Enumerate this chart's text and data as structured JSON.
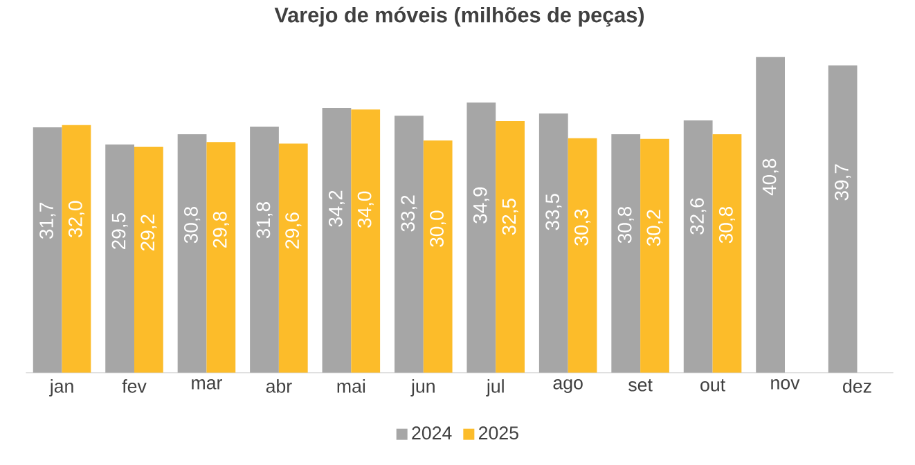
{
  "chart_data": {
    "type": "bar",
    "title": "Varejo de móveis (milhões de peças)",
    "categories": [
      "jan",
      "fev",
      "mar",
      "abr",
      "mai",
      "jun",
      "jul",
      "ago",
      "set",
      "out",
      "nov",
      "dez"
    ],
    "series": [
      {
        "name": "2024",
        "color": "#a6a6a6",
        "values": [
          31.7,
          29.5,
          30.8,
          31.8,
          34.2,
          33.2,
          34.9,
          33.5,
          30.8,
          32.6,
          40.8,
          39.7
        ],
        "value_labels": [
          "31,7",
          "29,5",
          "30,8",
          "31,8",
          "34,2",
          "33,2",
          "34,9",
          "33,5",
          "30,8",
          "32,6",
          "40,8",
          "39,7"
        ]
      },
      {
        "name": "2025",
        "color": "#fcbc2a",
        "values": [
          32.0,
          29.2,
          29.8,
          29.6,
          34.0,
          30.0,
          32.5,
          30.3,
          30.2,
          30.8,
          null,
          null
        ],
        "value_labels": [
          "32,0",
          "29,2",
          "29,8",
          "29,6",
          "34,0",
          "30,0",
          "32,5",
          "30,3",
          "30,2",
          "30,8",
          null,
          null
        ]
      }
    ],
    "legend": "bottom"
  }
}
